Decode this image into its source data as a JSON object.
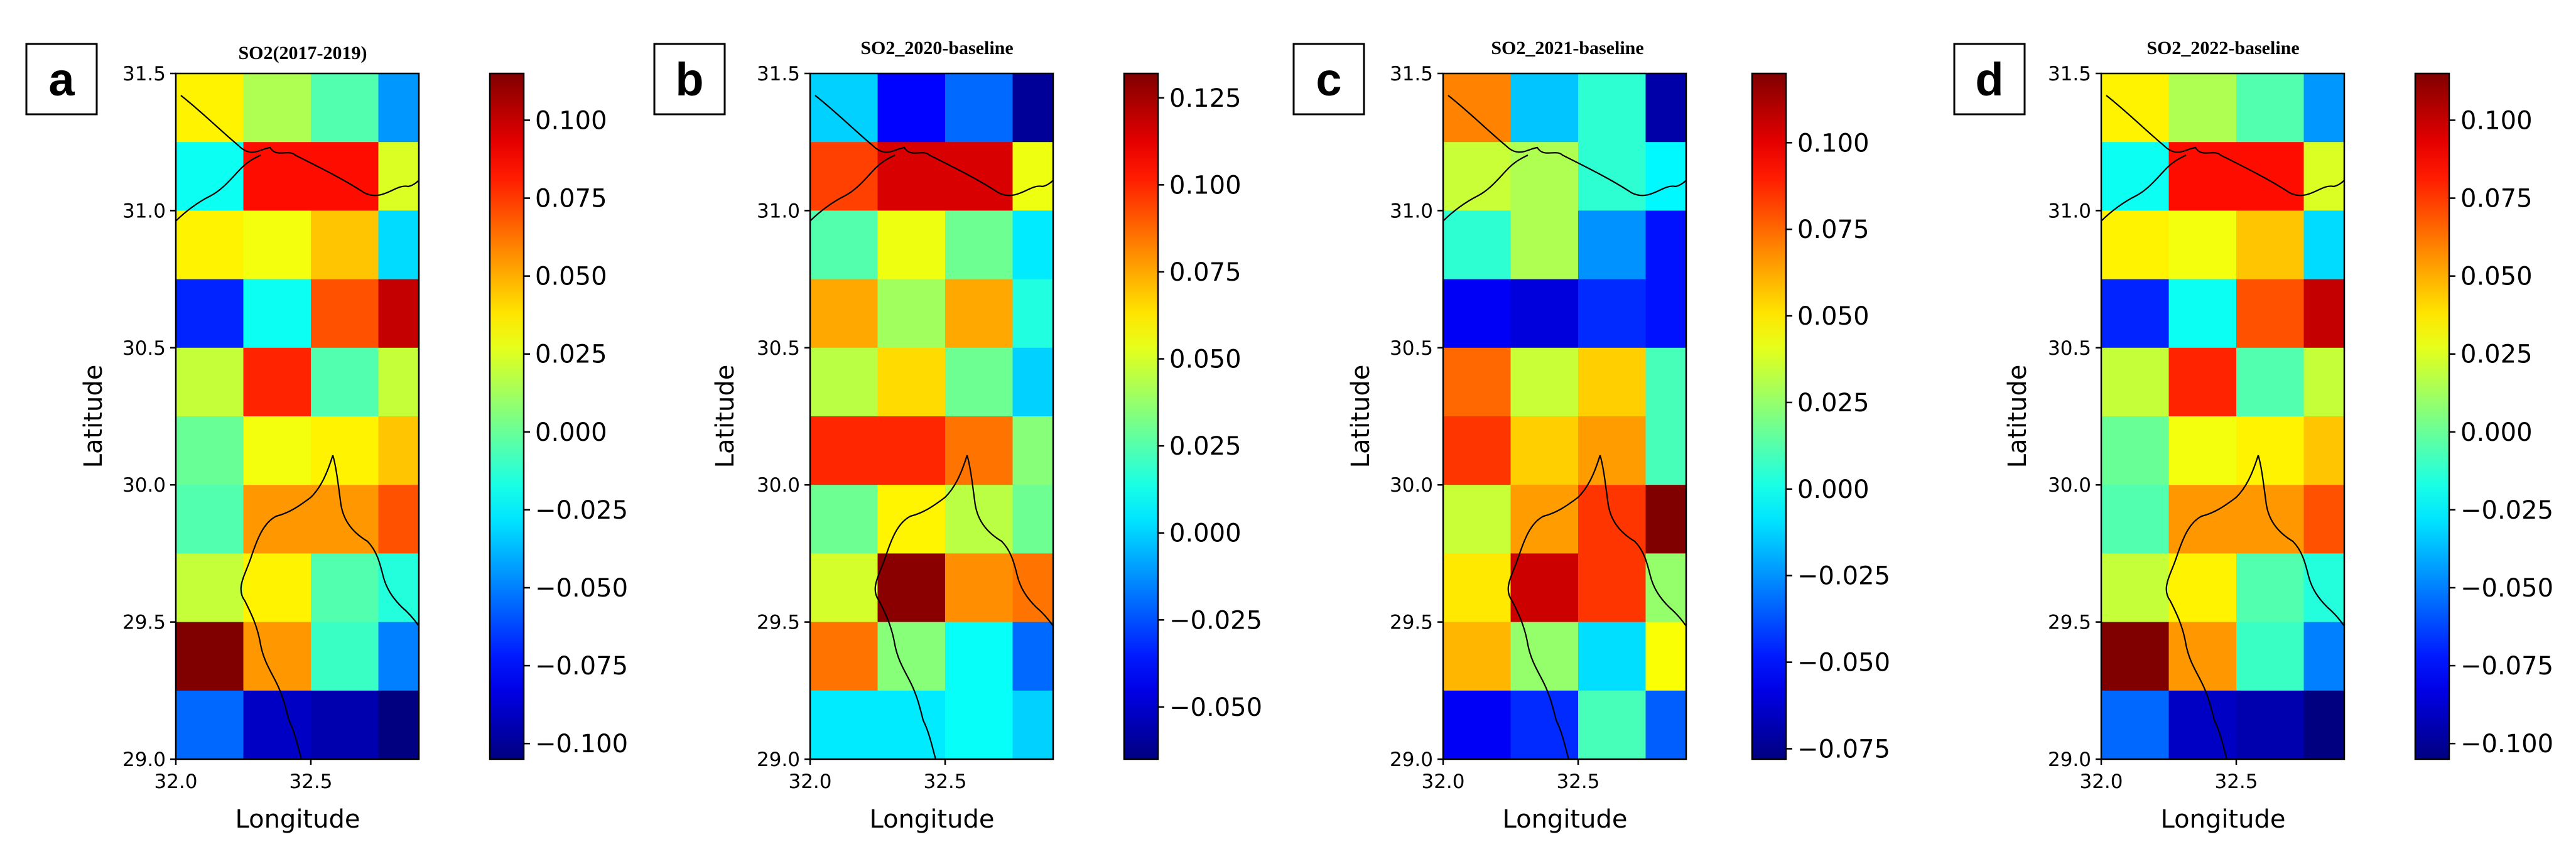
{
  "colors": {
    "colormap": "jet",
    "coastline": "#000000",
    "frame": "#000000"
  },
  "chart_data": [
    {
      "type": "heatmap",
      "panel_label": "a",
      "title": "SO2(2017-2019)",
      "xlabel": "Longitude",
      "ylabel": "Latitude",
      "xlim": [
        32.0,
        32.9
      ],
      "ylim": [
        29.0,
        31.5
      ],
      "xticks": [
        "32.0",
        "32.5"
      ],
      "yticks": [
        "29.0",
        "29.5",
        "30.0",
        "30.5",
        "31.0",
        "31.5"
      ],
      "grid_note": "rows listed north to south, columns west to east",
      "cell_lon_edges": [
        32.0,
        32.25,
        32.5,
        32.75,
        32.9
      ],
      "cell_lat_edges": [
        31.5,
        31.25,
        31.0,
        30.75,
        30.5,
        30.25,
        30.0,
        29.75,
        29.5,
        29.25,
        29.0
      ],
      "values": [
        [
          0.035,
          0.015,
          -0.005,
          -0.045
        ],
        [
          -0.02,
          0.085,
          0.085,
          0.025
        ],
        [
          0.035,
          0.03,
          0.045,
          -0.03
        ],
        [
          -0.07,
          -0.02,
          0.07,
          0.1
        ],
        [
          0.02,
          0.08,
          -0.005,
          0.02
        ],
        [
          0.0,
          0.03,
          0.035,
          0.045
        ],
        [
          -0.005,
          0.055,
          0.055,
          0.07
        ],
        [
          0.02,
          0.035,
          -0.005,
          -0.015
        ],
        [
          0.115,
          0.055,
          -0.01,
          -0.05
        ],
        [
          -0.055,
          -0.09,
          -0.095,
          -0.105
        ]
      ],
      "colorbar": {
        "vmin": -0.105,
        "vmax": 0.115,
        "ticks": [
          -0.1,
          -0.075,
          -0.05,
          -0.025,
          0.0,
          0.025,
          0.05,
          0.075,
          0.1
        ],
        "tick_labels": [
          "−0.100",
          "−0.075",
          "−0.050",
          "−0.025",
          "0.000",
          "0.025",
          "0.050",
          "0.075",
          "0.100"
        ]
      }
    },
    {
      "type": "heatmap",
      "panel_label": "b",
      "title": "SO2_2020-baseline",
      "xlabel": "Longitude",
      "ylabel": "Latitude",
      "xlim": [
        32.0,
        32.9
      ],
      "ylim": [
        29.0,
        31.5
      ],
      "xticks": [
        "32.0",
        "32.5"
      ],
      "yticks": [
        "29.0",
        "29.5",
        "30.0",
        "30.5",
        "31.0",
        "31.5"
      ],
      "grid_note": "rows listed north to south, columns west to east",
      "cell_lon_edges": [
        32.0,
        32.25,
        32.5,
        32.75,
        32.9
      ],
      "cell_lat_edges": [
        31.5,
        31.25,
        31.0,
        30.75,
        30.5,
        30.25,
        30.0,
        29.75,
        29.5,
        29.25,
        29.0
      ],
      "values": [
        [
          0.0,
          -0.04,
          -0.02,
          -0.06
        ],
        [
          0.095,
          0.115,
          0.115,
          0.055
        ],
        [
          0.025,
          0.055,
          0.03,
          0.005
        ],
        [
          0.075,
          0.04,
          0.075,
          0.015
        ],
        [
          0.045,
          0.065,
          0.03,
          0.0
        ],
        [
          0.1,
          0.1,
          0.085,
          0.035
        ],
        [
          0.03,
          0.06,
          0.045,
          0.03
        ],
        [
          0.05,
          0.13,
          0.08,
          0.085
        ],
        [
          0.085,
          0.035,
          0.01,
          -0.02
        ],
        [
          0.005,
          0.005,
          0.01,
          0.0
        ]
      ],
      "colorbar": {
        "vmin": -0.065,
        "vmax": 0.132,
        "ticks": [
          -0.05,
          -0.025,
          0.0,
          0.025,
          0.05,
          0.075,
          0.1,
          0.125
        ],
        "tick_labels": [
          "−0.050",
          "−0.025",
          "0.000",
          "0.025",
          "0.050",
          "0.075",
          "0.100",
          "0.125"
        ]
      }
    },
    {
      "type": "heatmap",
      "panel_label": "c",
      "title": "SO2_2021-baseline",
      "xlabel": "Longitude",
      "ylabel": "Latitude",
      "xlim": [
        32.0,
        32.9
      ],
      "ylim": [
        29.0,
        31.5
      ],
      "xticks": [
        "32.0",
        "32.5"
      ],
      "yticks": [
        "29.0",
        "29.5",
        "30.0",
        "30.5",
        "31.0",
        "31.5"
      ],
      "grid_note": "rows listed north to south, columns west to east",
      "cell_lon_edges": [
        32.0,
        32.25,
        32.5,
        32.75,
        32.9
      ],
      "cell_lat_edges": [
        31.5,
        31.25,
        31.0,
        30.75,
        30.5,
        30.25,
        30.0,
        29.75,
        29.5,
        29.25,
        29.0
      ],
      "values": [
        [
          0.07,
          -0.015,
          0.005,
          -0.07
        ],
        [
          0.035,
          0.03,
          0.005,
          -0.005
        ],
        [
          0.005,
          0.03,
          -0.025,
          -0.05
        ],
        [
          -0.055,
          -0.06,
          -0.045,
          -0.05
        ],
        [
          0.075,
          0.035,
          0.055,
          0.01
        ],
        [
          0.085,
          0.055,
          0.065,
          0.01
        ],
        [
          0.035,
          0.065,
          0.085,
          0.12
        ],
        [
          0.05,
          0.105,
          0.085,
          0.025
        ],
        [
          0.06,
          0.025,
          -0.01,
          0.045
        ],
        [
          -0.055,
          -0.045,
          0.01,
          -0.035
        ]
      ],
      "colorbar": {
        "vmin": -0.078,
        "vmax": 0.12,
        "ticks": [
          -0.075,
          -0.05,
          -0.025,
          0.0,
          0.025,
          0.05,
          0.075,
          0.1
        ],
        "tick_labels": [
          "−0.075",
          "−0.050",
          "−0.025",
          "0.000",
          "0.025",
          "0.050",
          "0.075",
          "0.100"
        ]
      }
    },
    {
      "type": "heatmap",
      "panel_label": "d",
      "title": "SO2_2022-baseline",
      "xlabel": "Longitude",
      "ylabel": "Latitude",
      "xlim": [
        32.0,
        32.9
      ],
      "ylim": [
        29.0,
        31.5
      ],
      "xticks": [
        "32.0",
        "32.5"
      ],
      "yticks": [
        "29.0",
        "29.5",
        "30.0",
        "30.5",
        "31.0",
        "31.5"
      ],
      "grid_note": "rows listed north to south, columns west to east",
      "cell_lon_edges": [
        32.0,
        32.25,
        32.5,
        32.75,
        32.9
      ],
      "cell_lat_edges": [
        31.5,
        31.25,
        31.0,
        30.75,
        30.5,
        30.25,
        30.0,
        29.75,
        29.5,
        29.25,
        29.0
      ],
      "values": [
        [
          0.035,
          0.015,
          -0.005,
          -0.045
        ],
        [
          -0.02,
          0.085,
          0.085,
          0.025
        ],
        [
          0.035,
          0.03,
          0.045,
          -0.03
        ],
        [
          -0.07,
          -0.02,
          0.07,
          0.1
        ],
        [
          0.02,
          0.08,
          -0.005,
          0.02
        ],
        [
          0.0,
          0.03,
          0.035,
          0.045
        ],
        [
          -0.005,
          0.055,
          0.055,
          0.07
        ],
        [
          0.02,
          0.035,
          -0.005,
          -0.015
        ],
        [
          0.115,
          0.055,
          -0.01,
          -0.05
        ],
        [
          -0.055,
          -0.09,
          -0.095,
          -0.105
        ]
      ],
      "colorbar": {
        "vmin": -0.105,
        "vmax": 0.115,
        "ticks": [
          -0.1,
          -0.075,
          -0.05,
          -0.025,
          0.0,
          0.025,
          0.05,
          0.075,
          0.1
        ],
        "tick_labels": [
          "−0.100",
          "−0.075",
          "−0.050",
          "−0.025",
          "0.000",
          "0.025",
          "0.050",
          "0.075",
          "0.100"
        ]
      }
    }
  ]
}
